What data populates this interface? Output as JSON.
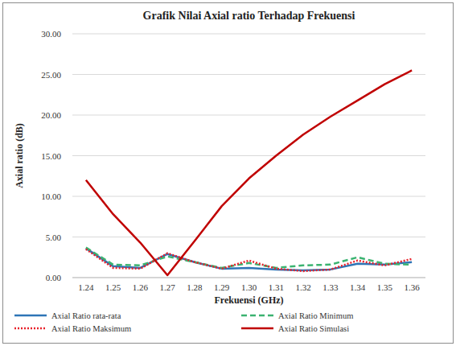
{
  "chart_data": {
    "type": "line",
    "title": "Grafik Nilai Axial ratio Terhadap Frekuensi",
    "x_label": "Frekuensi (GHz)",
    "y_label": "Axial ratio (dB)",
    "categories": [
      "1.24",
      "1.25",
      "1.26",
      "1.27",
      "1.28",
      "1.29",
      "1.30",
      "1.31",
      "1.32",
      "1.33",
      "1.34",
      "1.35",
      "1.36"
    ],
    "series": [
      {
        "name": "Axial Ratio rata-rata",
        "color": "#2e75b6",
        "line_style": "solid",
        "values": [
          3.6,
          1.4,
          1.2,
          2.9,
          1.9,
          1.1,
          1.2,
          1.0,
          0.9,
          1.0,
          1.7,
          1.6,
          1.9
        ]
      },
      {
        "name": "Axial Ratio Minimum",
        "color": "#3cb371",
        "line_style": "dashed",
        "values": [
          3.7,
          1.6,
          1.5,
          2.6,
          1.9,
          1.2,
          1.8,
          1.2,
          1.5,
          1.6,
          2.5,
          1.7,
          1.6
        ]
      },
      {
        "name": "Axial Ratio Maksimum",
        "color": "#e8212b",
        "line_style": "dotted",
        "values": [
          3.5,
          1.2,
          1.1,
          3.0,
          1.9,
          1.1,
          2.1,
          1.1,
          0.8,
          1.0,
          2.1,
          1.5,
          2.3
        ]
      },
      {
        "name": "Axial Ratio Simulasi",
        "color": "#c00000",
        "line_style": "solid",
        "values": [
          12.0,
          7.8,
          4.3,
          0.3,
          4.5,
          8.8,
          12.2,
          15.0,
          17.6,
          19.8,
          21.8,
          23.8,
          25.5
        ]
      }
    ],
    "ylim": [
      0,
      30
    ],
    "yticks": [
      {
        "value": 0,
        "label": "0.00"
      },
      {
        "value": 5,
        "label": "5.00"
      },
      {
        "value": 10,
        "label": "10.00"
      },
      {
        "value": 15,
        "label": "15.00"
      },
      {
        "value": 20,
        "label": "20.00"
      },
      {
        "value": 25,
        "label": "25.00"
      },
      {
        "value": 30,
        "label": "30.00"
      }
    ],
    "grid": true,
    "legend": "bottom"
  }
}
